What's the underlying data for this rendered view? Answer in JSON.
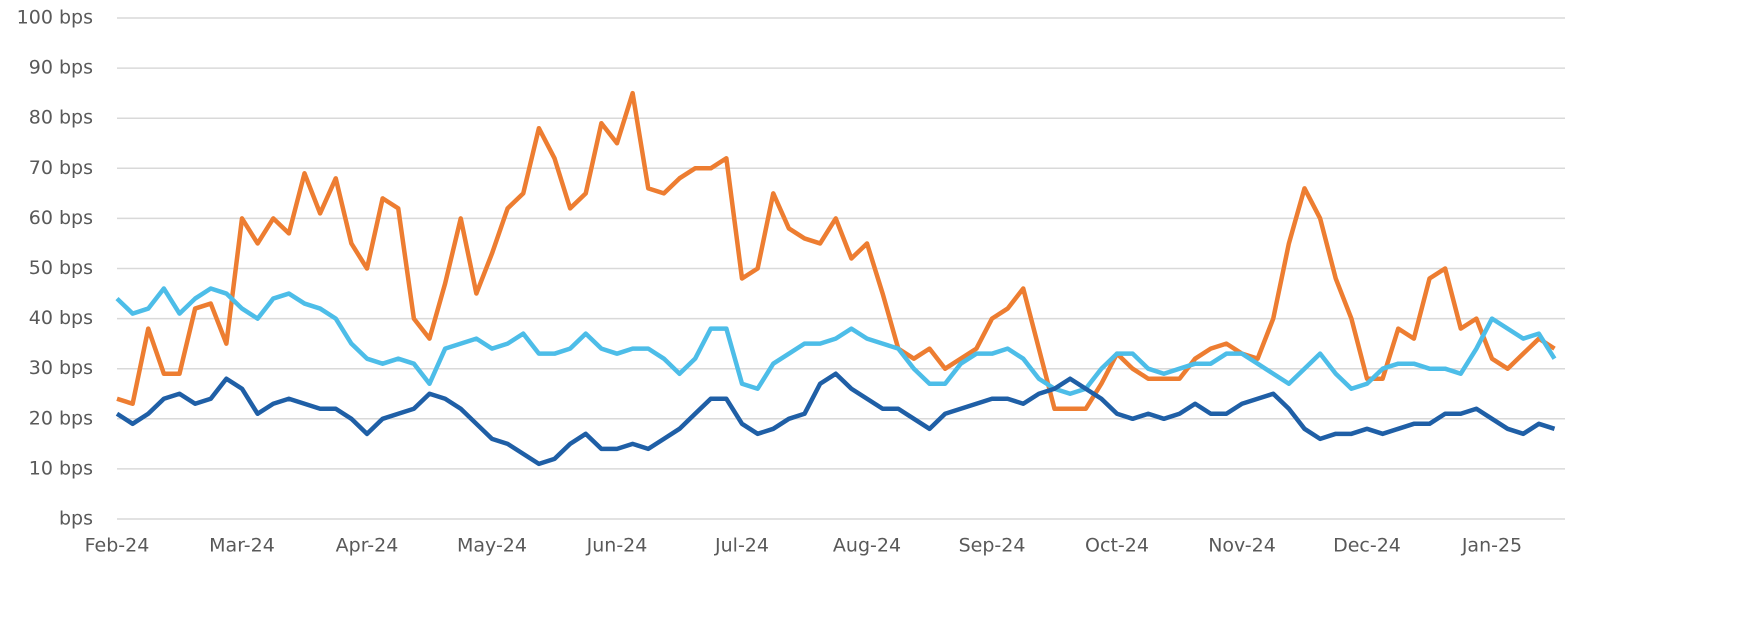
{
  "chart_data": {
    "type": "line",
    "categories": [
      "Feb-24",
      null,
      null,
      null,
      null,
      null,
      null,
      null,
      "Mar-24",
      null,
      null,
      null,
      null,
      null,
      null,
      null,
      "Apr-24",
      null,
      null,
      null,
      null,
      null,
      null,
      null,
      "May-24",
      null,
      null,
      null,
      null,
      null,
      null,
      null,
      "Jun-24",
      null,
      null,
      null,
      null,
      null,
      null,
      null,
      "Jul-24",
      null,
      null,
      null,
      null,
      null,
      null,
      null,
      "Aug-24",
      null,
      null,
      null,
      null,
      null,
      null,
      null,
      "Sep-24",
      null,
      null,
      null,
      null,
      null,
      null,
      null,
      "Oct-24",
      null,
      null,
      null,
      null,
      null,
      null,
      null,
      "Nov-24",
      null,
      null,
      null,
      null,
      null,
      null,
      null,
      "Dec-24",
      null,
      null,
      null,
      null,
      null,
      null,
      null,
      "Jan-25",
      null,
      null,
      null,
      null
    ],
    "series": [
      {
        "color": "#ed7d31",
        "values": [
          24,
          23,
          38,
          29,
          29,
          42,
          43,
          35,
          60,
          55,
          60,
          57,
          69,
          61,
          68,
          55,
          50,
          64,
          62,
          40,
          36,
          47,
          60,
          45,
          53,
          62,
          65,
          78,
          72,
          62,
          65,
          79,
          75,
          85,
          66,
          65,
          68,
          70,
          70,
          72,
          48,
          50,
          65,
          58,
          56,
          55,
          60,
          52,
          55,
          45,
          34,
          32,
          34,
          30,
          32,
          34,
          40,
          42,
          46,
          34,
          22,
          22,
          22,
          27,
          33,
          30,
          28,
          28,
          28,
          32,
          34,
          35,
          33,
          32,
          40,
          55,
          66,
          60,
          48,
          40,
          28,
          28,
          38,
          36,
          48,
          50,
          38,
          40,
          32,
          30,
          33,
          36,
          34
        ]
      },
      {
        "color": "#4dbde8",
        "values": [
          44,
          41,
          42,
          46,
          41,
          44,
          46,
          45,
          42,
          40,
          44,
          45,
          43,
          42,
          40,
          35,
          32,
          31,
          32,
          31,
          27,
          34,
          35,
          36,
          34,
          35,
          37,
          33,
          33,
          34,
          37,
          34,
          33,
          34,
          34,
          32,
          29,
          32,
          38,
          38,
          27,
          26,
          31,
          33,
          35,
          35,
          36,
          38,
          36,
          35,
          34,
          30,
          27,
          27,
          31,
          33,
          33,
          34,
          32,
          28,
          26,
          25,
          26,
          30,
          33,
          33,
          30,
          29,
          30,
          31,
          31,
          33,
          33,
          31,
          29,
          27,
          30,
          33,
          29,
          26,
          27,
          30,
          31,
          31,
          30,
          30,
          29,
          34,
          40,
          38,
          36,
          37,
          32
        ]
      },
      {
        "color": "#1f5fa6",
        "values": [
          21,
          19,
          21,
          24,
          25,
          23,
          24,
          28,
          26,
          21,
          23,
          24,
          23,
          22,
          22,
          20,
          17,
          20,
          21,
          22,
          25,
          24,
          22,
          19,
          16,
          15,
          13,
          11,
          12,
          15,
          17,
          14,
          14,
          15,
          14,
          16,
          18,
          21,
          24,
          24,
          19,
          17,
          18,
          20,
          21,
          27,
          29,
          26,
          24,
          22,
          22,
          20,
          18,
          21,
          22,
          23,
          24,
          24,
          23,
          25,
          26,
          28,
          26,
          24,
          21,
          20,
          21,
          20,
          21,
          23,
          21,
          21,
          23,
          24,
          25,
          22,
          18,
          16,
          17,
          17,
          18,
          17,
          18,
          19,
          19,
          21,
          21,
          22,
          20,
          18,
          17,
          19,
          18
        ]
      }
    ],
    "ylim": [
      0,
      100
    ],
    "yticks": [
      {
        "value": 0,
        "label": "bps"
      },
      {
        "value": 10,
        "label": "10 bps"
      },
      {
        "value": 20,
        "label": "20 bps"
      },
      {
        "value": 30,
        "label": "30 bps"
      },
      {
        "value": 40,
        "label": "40 bps"
      },
      {
        "value": 50,
        "label": "50 bps"
      },
      {
        "value": 60,
        "label": "60 bps"
      },
      {
        "value": 70,
        "label": "70 bps"
      },
      {
        "value": 80,
        "label": "80 bps"
      },
      {
        "value": 90,
        "label": "90 bps"
      },
      {
        "value": 100,
        "label": "100 bps"
      }
    ],
    "grid": true
  }
}
